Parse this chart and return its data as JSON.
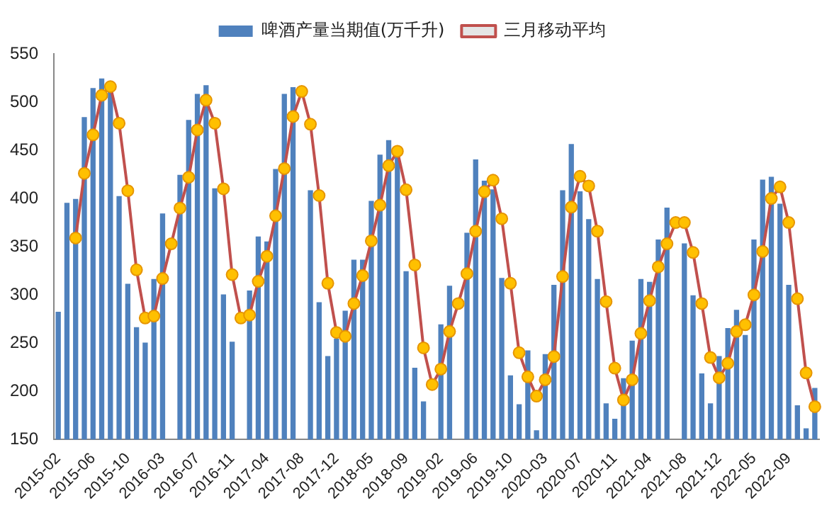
{
  "chart_data": {
    "type": "bar",
    "categories": [
      "2015-02",
      null,
      null,
      null,
      "2015-06",
      null,
      null,
      null,
      "2015-10",
      null,
      null,
      null,
      "2016-03",
      null,
      null,
      null,
      "2016-07",
      null,
      null,
      null,
      "2016-11",
      null,
      null,
      null,
      "2017-04",
      null,
      null,
      null,
      "2017-08",
      null,
      null,
      null,
      "2017-12",
      null,
      null,
      null,
      "2018-05",
      null,
      null,
      null,
      "2018-09",
      null,
      null,
      null,
      "2019-02",
      null,
      null,
      null,
      "2019-06",
      null,
      null,
      null,
      "2019-10",
      null,
      null,
      null,
      "2020-03",
      null,
      null,
      null,
      "2020-07",
      null,
      null,
      null,
      "2020-11",
      null,
      null,
      null,
      "2021-04",
      null,
      null,
      null,
      "2021-08",
      null,
      null,
      null,
      "2021-12",
      null,
      null,
      null,
      "2022-05",
      null,
      null,
      null,
      "2022-09",
      null,
      null,
      null
    ],
    "series": [
      {
        "name": "啤酒产量当期值(万千升)",
        "color": "#4f81bd",
        "values": [
          282,
          395,
          399,
          484,
          514,
          524,
          513,
          402,
          311,
          266,
          250,
          316,
          384,
          null,
          424,
          481,
          508,
          517,
          410,
          300,
          251,
          null,
          304,
          360,
          355,
          430,
          508,
          515,
          null,
          408,
          292,
          236,
          254,
          283,
          336,
          336,
          397,
          445,
          460,
          446,
          324,
          224,
          189,
          null,
          269,
          309,
          null,
          364,
          440,
          418,
          409,
          317,
          216,
          186,
          242,
          159,
          238,
          310,
          408,
          456,
          407,
          378,
          316,
          187,
          171,
          213,
          252,
          316,
          313,
          357,
          390,
          null,
          353,
          299,
          218,
          187,
          236,
          265,
          284,
          258,
          357,
          419,
          422,
          394,
          310,
          185,
          161,
          203
        ]
      },
      {
        "name": "三月移动平均",
        "type": "line",
        "color": "#c0504d",
        "values": [
          null,
          null,
          359,
          426,
          466,
          507,
          516,
          478,
          408,
          326,
          276,
          278,
          317,
          353,
          390,
          422,
          471,
          502,
          478,
          410,
          321,
          276,
          279,
          314,
          340,
          382,
          431,
          485,
          511,
          477,
          403,
          312,
          261,
          257,
          291,
          320,
          356,
          393,
          434,
          449,
          409,
          331,
          245,
          207,
          223,
          262,
          291,
          322,
          366,
          407,
          419,
          379,
          312,
          240,
          215,
          195,
          212,
          236,
          319,
          391,
          423,
          413,
          366,
          293,
          224,
          191,
          212,
          260,
          294,
          329,
          353,
          375,
          375,
          344,
          291,
          235,
          214,
          229,
          262,
          269,
          300,
          345,
          400,
          412,
          375,
          296,
          219,
          184
        ]
      }
    ],
    "ylim": [
      150,
      550
    ],
    "yticks": [
      150,
      200,
      250,
      300,
      350,
      400,
      450,
      500,
      550
    ],
    "grid": false,
    "legend": "top",
    "marker": "circle",
    "line_style": "solid"
  }
}
